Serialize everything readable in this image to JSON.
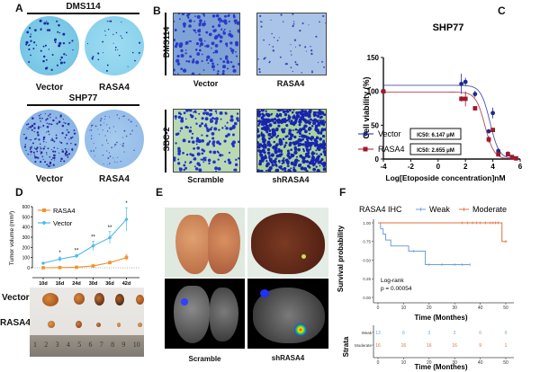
{
  "panels": {
    "A": {
      "label": "A",
      "groups": [
        {
          "cell_line": "DMS114",
          "left": "Vector",
          "right": "RASA4"
        },
        {
          "cell_line": "SHP77",
          "left": "Vector",
          "right": "RASA4"
        }
      ]
    },
    "B": {
      "label": "B",
      "rows": [
        {
          "cell_line": "DMS114",
          "left": "Vector",
          "right": "RASA4"
        },
        {
          "cell_line": "SBC-2",
          "left": "Scramble",
          "right": "shRASA4"
        }
      ]
    },
    "C": {
      "label": "C"
    },
    "D": {
      "label": "D",
      "photo_rows": [
        "Vector",
        "RASA4"
      ],
      "ruler_numbers": [
        "1",
        "2",
        "3",
        "4",
        "5",
        "6",
        "7",
        "8",
        "9",
        "10"
      ]
    },
    "E": {
      "label": "E",
      "left": "Scramble",
      "right": "shRASA4"
    },
    "F": {
      "label": "F",
      "legend_title": "RASA4 IHC",
      "stat_line1": "Log-rank",
      "stat_line2": "p = 0.00054",
      "risk_table": {
        "ylabel": "Strata",
        "xlabel": "Time  (Monthes)",
        "rows": [
          {
            "name": "Weak",
            "color": "#6a9fdc",
            "values": [
              "13",
              "6",
              "3",
              "2",
              "0",
              "0"
            ]
          },
          {
            "name": "Moderate",
            "color": "#e0703c",
            "values": [
              "16",
              "16",
              "16",
              "16",
              "9",
              "1"
            ]
          }
        ],
        "ticks": [
          "0",
          "10",
          "20",
          "30",
          "40",
          "50"
        ]
      }
    }
  },
  "chart_data": [
    {
      "id": "C",
      "type": "scatter",
      "title": "SHP77",
      "xlabel": "Log[Etoposide concentration]nM",
      "ylabel": "Cell viability (%)",
      "xlim": [
        -4,
        6
      ],
      "ylim": [
        0,
        150
      ],
      "xticks": [
        "-4",
        "-2",
        "0",
        "2",
        "4",
        "6"
      ],
      "yticks": [
        "0",
        "50",
        "100",
        "150"
      ],
      "series": [
        {
          "name": "Vector",
          "color": "#1c2a8a",
          "marker": "circle",
          "ic50": "IC50: 6.147 μM",
          "top": 109,
          "logic50": 3.79,
          "hill": 1.3,
          "x": [
            -4,
            1.7,
            2.0,
            2.7,
            3.7,
            4.0,
            4.4,
            5.1,
            5.4,
            5.7
          ],
          "y": [
            100,
            111,
            114,
            96,
            41,
            68,
            12,
            8,
            3,
            1
          ],
          "err": [
            0,
            15,
            6,
            5,
            0,
            8,
            0,
            0,
            0,
            0
          ]
        },
        {
          "name": "RASA4",
          "color": "#a0182e",
          "marker": "square",
          "ic50": "IC50: 2.655 μM",
          "top": 99,
          "logic50": 3.42,
          "hill": 1.3,
          "x": [
            -4,
            1.7,
            2.0,
            2.7,
            3.7,
            4.0,
            4.4,
            5.1,
            5.4,
            5.7
          ],
          "y": [
            100,
            89,
            89,
            75,
            29,
            43,
            7,
            7,
            3,
            1
          ],
          "err": [
            0,
            4,
            11,
            3,
            5,
            0,
            3,
            0,
            0,
            0
          ]
        }
      ]
    },
    {
      "id": "D",
      "type": "line",
      "title": "",
      "xlabel": "",
      "ylabel": "Tumor volume (mm³)",
      "categories": [
        "10d",
        "16d",
        "24d",
        "30d",
        "36d",
        "42d"
      ],
      "ylim": [
        0,
        600
      ],
      "yticks": [
        "0",
        "100",
        "200",
        "300",
        "400",
        "500",
        "600"
      ],
      "legend": "top-left",
      "significance": [
        "",
        "*",
        "**",
        "**",
        "**",
        "*"
      ],
      "series": [
        {
          "name": "RASA4",
          "color": "#f0922e",
          "marker": "square",
          "values": [
            0,
            2,
            5,
            18,
            50,
            100
          ],
          "err": [
            0,
            0,
            0,
            5,
            15,
            25
          ]
        },
        {
          "name": "Vector",
          "color": "#4fb8ea",
          "marker": "diamond",
          "values": [
            45,
            85,
            115,
            215,
            295,
            475
          ],
          "err": [
            0,
            20,
            15,
            45,
            60,
            115
          ]
        }
      ]
    },
    {
      "id": "F",
      "type": "line",
      "title": "",
      "xlabel": "Time  (Monthes)",
      "ylabel": "Survival probability",
      "xlim": [
        0,
        50
      ],
      "ylim": [
        0,
        1
      ],
      "xticks": [
        "0",
        "10",
        "20",
        "30",
        "40",
        "50"
      ],
      "yticks": [
        "0.00",
        "0.25",
        "0.50",
        "0.75",
        "1.00"
      ],
      "legend": "top",
      "series": [
        {
          "name": "Weak",
          "color": "#6a9fdc",
          "steps": [
            [
              0,
              1.0
            ],
            [
              1,
              0.92
            ],
            [
              2,
              0.85
            ],
            [
              3,
              0.77
            ],
            [
              5,
              0.69
            ],
            [
              12,
              0.62
            ],
            [
              18.5,
              0.44
            ],
            [
              36,
              0.44
            ]
          ],
          "censor": [
            [
              14,
              0.62
            ],
            [
              20,
              0.44
            ],
            [
              25,
              0.44
            ],
            [
              30,
              0.44
            ],
            [
              33,
              0.44
            ],
            [
              36,
              0.44
            ]
          ]
        },
        {
          "name": "Moderate",
          "color": "#e0703c",
          "steps": [
            [
              0,
              1.0
            ],
            [
              48.5,
              1.0
            ],
            [
              48.5,
              0.75
            ],
            [
              50.5,
              0.75
            ]
          ],
          "censor": [
            [
              33,
              1
            ],
            [
              35,
              1
            ],
            [
              37,
              1
            ],
            [
              38.5,
              1
            ],
            [
              40,
              1
            ],
            [
              42,
              1
            ],
            [
              44,
              1
            ],
            [
              45,
              1
            ],
            [
              46,
              1
            ],
            [
              47,
              1
            ],
            [
              50,
              0.75
            ]
          ]
        }
      ]
    }
  ]
}
